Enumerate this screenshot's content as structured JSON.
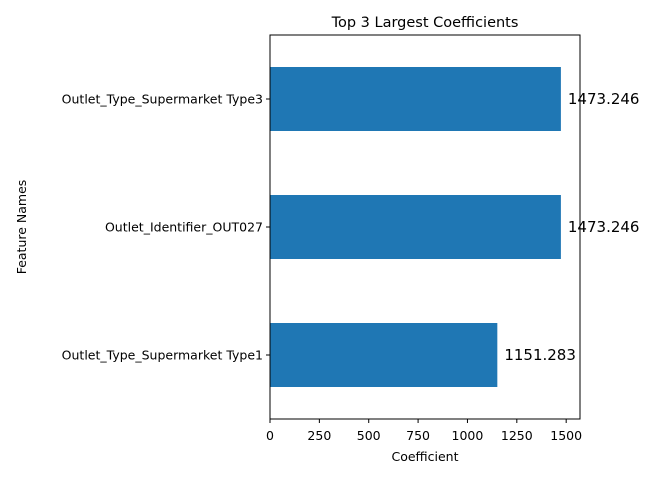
{
  "chart_data": {
    "type": "bar",
    "orientation": "horizontal",
    "title": "Top 3 Largest Coefficients",
    "xlabel": "Coefficient",
    "ylabel": "Feature Names",
    "categories": [
      "Outlet_Type_Supermarket Type1",
      "Outlet_Identifier_OUT027",
      "Outlet_Type_Supermarket Type3"
    ],
    "values": [
      1151.283,
      1473.246,
      1473.246
    ],
    "value_labels": [
      "1151.283",
      "1473.246",
      "1473.246"
    ],
    "xlim": [
      0,
      1570
    ],
    "xticks": [
      0,
      250,
      500,
      750,
      1000,
      1250,
      1500
    ],
    "grid": false,
    "bar_color": "#1f77b4"
  }
}
